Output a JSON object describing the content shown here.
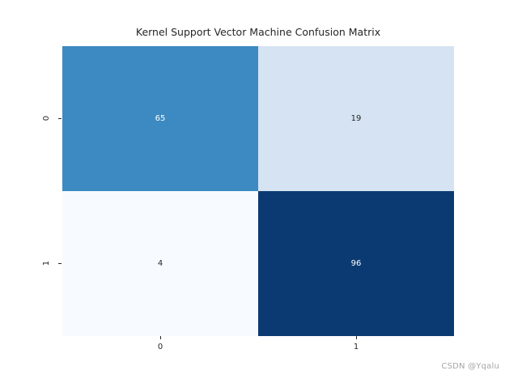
{
  "chart_data": {
    "type": "heatmap",
    "title": "Kernel Support Vector Machine Confusion Matrix",
    "colormap": "Blues",
    "x_tick_labels": [
      "0",
      "1"
    ],
    "y_tick_labels": [
      "0",
      "1"
    ],
    "values": [
      [
        65,
        19
      ],
      [
        4,
        96
      ]
    ],
    "vmin": 4,
    "vmax": 96,
    "colorbar": "off",
    "grid": "off",
    "rows": [
      {
        "label": "0",
        "cells": [
          {
            "value": "65",
            "bg": "#3d8ac2",
            "fg": "#ffffff"
          },
          {
            "value": "19",
            "bg": "#d5e3f3",
            "fg": "#262626"
          }
        ]
      },
      {
        "label": "1",
        "cells": [
          {
            "value": "4",
            "bg": "#f7fbff",
            "fg": "#262626"
          },
          {
            "value": "96",
            "bg": "#0b3a72",
            "fg": "#ffffff"
          }
        ]
      }
    ]
  },
  "watermark": {
    "text": "CSDN @Yqalu"
  }
}
